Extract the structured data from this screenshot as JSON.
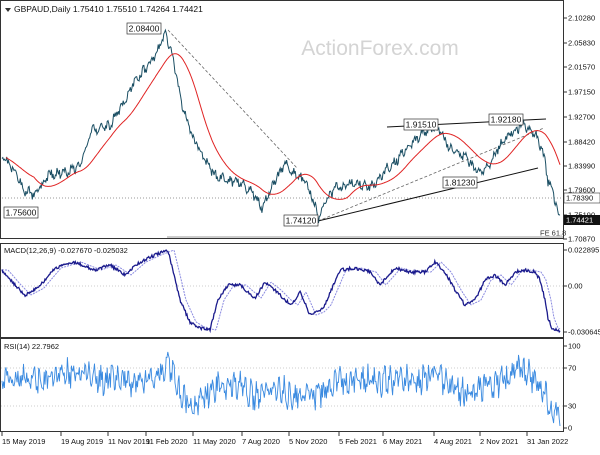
{
  "symbol_header": "GBPAUD,Daily  1.75410 1.75510 1.74264 1.74421",
  "watermark": "ActionForex.com",
  "colors": {
    "price_line": "#1a4e63",
    "sma_line": "#e02424",
    "dotted_level": "#555555",
    "macd_line": "#1a1a8c",
    "signal_line": "#8a8ae0",
    "rsi_line": "#3a8ae0",
    "border": "#333333"
  },
  "price_panel": {
    "y_ticks": [
      "2.10280",
      "2.05830",
      "2.01570",
      "1.97150",
      "1.92700",
      "1.88420",
      "1.83990",
      "1.79600",
      "1.75190",
      "1.70870"
    ],
    "current_price": "1.74421",
    "level_label": "1.78390",
    "fe_label": "FE 61.8",
    "annotations": [
      "2.08400",
      "1.91510",
      "1.92180",
      "1.81230",
      "1.75600",
      "1.74120"
    ]
  },
  "macd_panel": {
    "title": "MACD(12,26,9) -0.027670 -0.025032",
    "y_ticks": [
      "0.022895",
      "0.00",
      "-0.030645"
    ]
  },
  "rsi_panel": {
    "title": "RSI(14) 22.7962",
    "y_ticks": [
      "100",
      "70",
      "30",
      "0"
    ]
  },
  "x_axis": {
    "labels": [
      "15 May 2019",
      "19 Aug 2019",
      "11 Nov 2019",
      "11 Feb 2020",
      "11 May 2020",
      "7 Aug 2020",
      "5 Nov 2020",
      "5 Feb 2021",
      "6 May 2021",
      "4 Aug 2021",
      "2 Nov 2021",
      "31 Jan 2022"
    ]
  },
  "chart_data": {
    "type": "line",
    "title": "GBPAUD,Daily  1.75410 1.75510 1.74264 1.74421",
    "series": [
      {
        "name": "GBPAUD",
        "x": [
          "15 May 2019",
          "19 Aug 2019",
          "11 Nov 2019",
          "11 Feb 2020",
          "11 May 2020",
          "7 Aug 2020",
          "5 Nov 2020",
          "5 Feb 2021",
          "6 May 2021",
          "4 Aug 2021",
          "2 Nov 2021",
          "31 Jan 2022"
        ],
        "values": [
          1.85,
          1.76,
          1.89,
          2.05,
          1.92,
          1.78,
          1.8,
          1.78,
          1.85,
          1.9,
          1.87,
          1.87
        ]
      }
    ],
    "ylim": [
      1.7087,
      2.1028
    ]
  }
}
